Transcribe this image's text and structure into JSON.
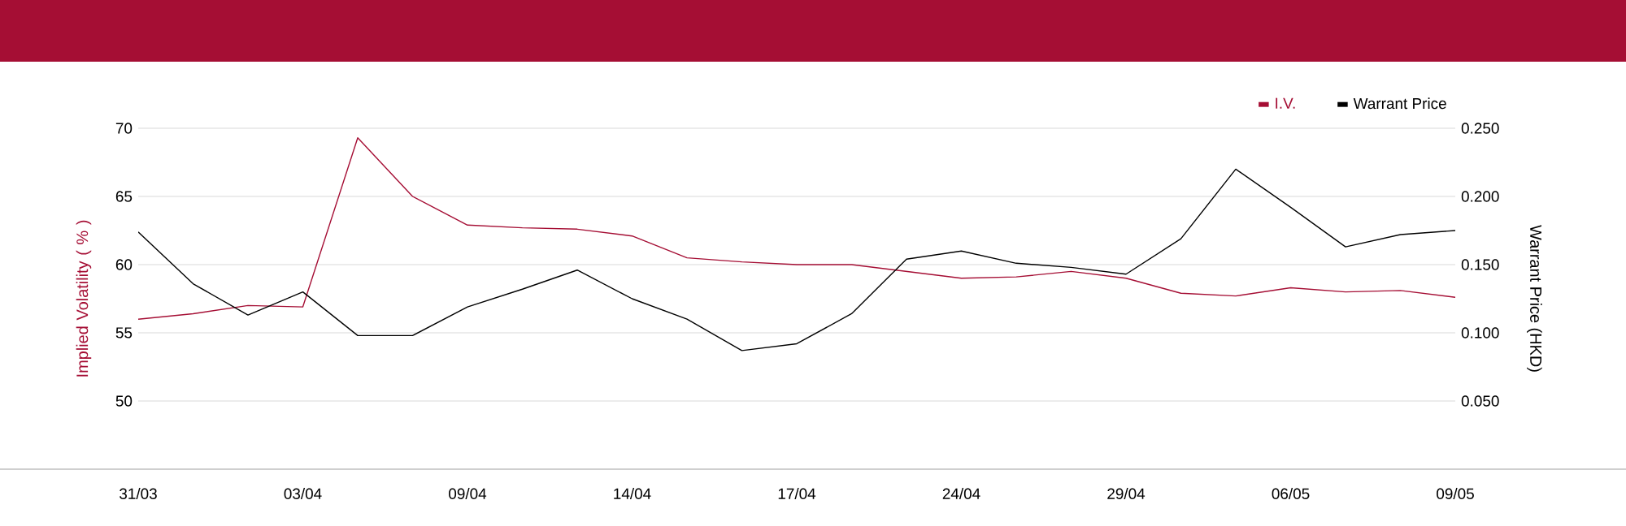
{
  "chart_data": {
    "type": "line",
    "ylabel": "Implied Volatility ( % )",
    "y2label": "Warrant Price (HKD)",
    "categories": [
      "31/03",
      null,
      null,
      "03/04",
      null,
      null,
      "09/04",
      null,
      null,
      "14/04",
      null,
      null,
      "17/04",
      null,
      null,
      "24/04",
      null,
      null,
      "29/04",
      null,
      null,
      "06/05",
      null,
      null,
      "09/05"
    ],
    "series": [
      {
        "name": "I.V.",
        "color": "#a50e34",
        "values": [
          56.0,
          56.4,
          57.0,
          56.9,
          69.3,
          65.0,
          62.9,
          62.7,
          62.6,
          62.1,
          60.5,
          60.2,
          60.0,
          60.0,
          59.5,
          59.0,
          59.1,
          59.5,
          59.0,
          57.9,
          57.7,
          58.3,
          58.0,
          58.1,
          57.6
        ]
      },
      {
        "name": "Warrant Price",
        "color": "#000000",
        "axis": "y2",
        "values": [
          0.174,
          0.136,
          0.113,
          0.13,
          0.098,
          0.098,
          0.119,
          0.132,
          0.146,
          0.125,
          0.11,
          0.087,
          0.092,
          0.114,
          0.154,
          0.16,
          0.151,
          0.148,
          0.143,
          0.169,
          0.22,
          0.192,
          0.163,
          0.172,
          0.175
        ]
      }
    ],
    "ylim": [
      45,
      70
    ],
    "yticks": [
      50,
      55,
      60,
      65,
      70
    ],
    "y2lim": [
      0,
      0.25
    ],
    "y2ticks": [
      {
        "value": 0.05,
        "label": "0.050"
      },
      {
        "value": 0.1,
        "label": "0.100"
      },
      {
        "value": 0.15,
        "label": "0.150"
      },
      {
        "value": 0.2,
        "label": "0.200"
      },
      {
        "value": 0.25,
        "label": "0.250"
      }
    ],
    "grid": "y",
    "legend": "top right",
    "marker": "none",
    "line_style": "solid"
  }
}
